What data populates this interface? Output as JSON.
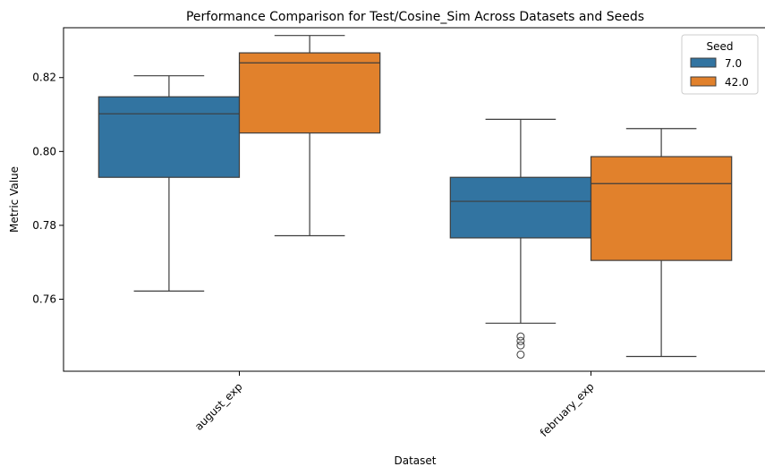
{
  "chart_data": {
    "type": "box",
    "title": "Performance Comparison for Test/Cosine_Sim Across Datasets and Seeds",
    "xlabel": "Dataset",
    "ylabel": "Metric Value",
    "categories": [
      "august_exp",
      "february_exp"
    ],
    "ylim": [
      0.7405,
      0.8335
    ],
    "yticks": [
      0.76,
      0.78,
      0.8,
      0.82
    ],
    "ytick_labels": [
      "0.76",
      "0.78",
      "0.80",
      "0.82"
    ],
    "legend": {
      "title": "Seed",
      "position": "top-right"
    },
    "series": [
      {
        "name": "7.0",
        "color": "#3274a1",
        "boxes": [
          {
            "category": "august_exp",
            "whisker_low": 0.7622,
            "q1": 0.793,
            "median": 0.8102,
            "q3": 0.8148,
            "whisker_high": 0.8205,
            "outliers": []
          },
          {
            "category": "february_exp",
            "whisker_low": 0.7535,
            "q1": 0.7766,
            "median": 0.7865,
            "q3": 0.793,
            "whisker_high": 0.8087,
            "outliers": [
              0.745,
              0.7475,
              0.7487,
              0.7499
            ]
          }
        ]
      },
      {
        "name": "42.0",
        "color": "#e1812c",
        "boxes": [
          {
            "category": "august_exp",
            "whisker_low": 0.7772,
            "q1": 0.805,
            "median": 0.824,
            "q3": 0.8267,
            "whisker_high": 0.8314,
            "outliers": []
          },
          {
            "category": "february_exp",
            "whisker_low": 0.7445,
            "q1": 0.7705,
            "median": 0.7913,
            "q3": 0.7986,
            "whisker_high": 0.8062,
            "outliers": []
          }
        ]
      }
    ]
  }
}
